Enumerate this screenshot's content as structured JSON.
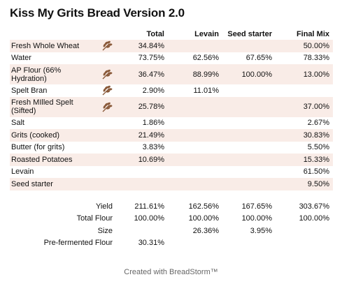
{
  "title": "Kiss My Grits Bread Version 2.0",
  "columns": [
    "Total",
    "Levain",
    "Seed starter",
    "Final Mix"
  ],
  "colors": {
    "shade": "#f9ece7",
    "wheat_icon": "#8a5a3a"
  },
  "rows": [
    {
      "name": "Fresh Whole Wheat",
      "icon": "wheat-icon",
      "total": "34.84%",
      "levain": "",
      "seed": "",
      "final": "50.00%"
    },
    {
      "name": "Water",
      "icon": "",
      "total": "73.75%",
      "levain": "62.56%",
      "seed": "67.65%",
      "final": "78.33%"
    },
    {
      "name": "AP Flour (66% Hydration)",
      "icon": "wheat-icon",
      "total": "36.47%",
      "levain": "88.99%",
      "seed": "100.00%",
      "final": "13.00%"
    },
    {
      "name": "Spelt Bran",
      "icon": "wheat-icon",
      "total": "2.90%",
      "levain": "11.01%",
      "seed": "",
      "final": ""
    },
    {
      "name": "Fresh MIlled Spelt (Sifted)",
      "icon": "wheat-icon",
      "total": "25.78%",
      "levain": "",
      "seed": "",
      "final": "37.00%"
    },
    {
      "name": "Salt",
      "icon": "",
      "total": "1.86%",
      "levain": "",
      "seed": "",
      "final": "2.67%"
    },
    {
      "name": "Grits (cooked)",
      "icon": "",
      "total": "21.49%",
      "levain": "",
      "seed": "",
      "final": "30.83%"
    },
    {
      "name": "Butter (for grits)",
      "icon": "",
      "total": "3.83%",
      "levain": "",
      "seed": "",
      "final": "5.50%"
    },
    {
      "name": "Roasted Potatoes",
      "icon": "",
      "total": "10.69%",
      "levain": "",
      "seed": "",
      "final": "15.33%"
    },
    {
      "name": "Levain",
      "icon": "",
      "total": "",
      "levain": "",
      "seed": "",
      "final": "61.50%"
    },
    {
      "name": "Seed starter",
      "icon": "",
      "total": "",
      "levain": "",
      "seed": "",
      "final": "9.50%"
    }
  ],
  "summary": [
    {
      "label": "Yield",
      "total": "211.61%",
      "levain": "162.56%",
      "seed": "167.65%",
      "final": "303.67%"
    },
    {
      "label": "Total Flour",
      "total": "100.00%",
      "levain": "100.00%",
      "seed": "100.00%",
      "final": "100.00%"
    },
    {
      "label": "Size",
      "total": "",
      "levain": "26.36%",
      "seed": "3.95%",
      "final": ""
    },
    {
      "label": "Pre-fermented Flour",
      "total": "30.31%",
      "levain": "",
      "seed": "",
      "final": ""
    }
  ],
  "footer": "Created with BreadStorm™"
}
